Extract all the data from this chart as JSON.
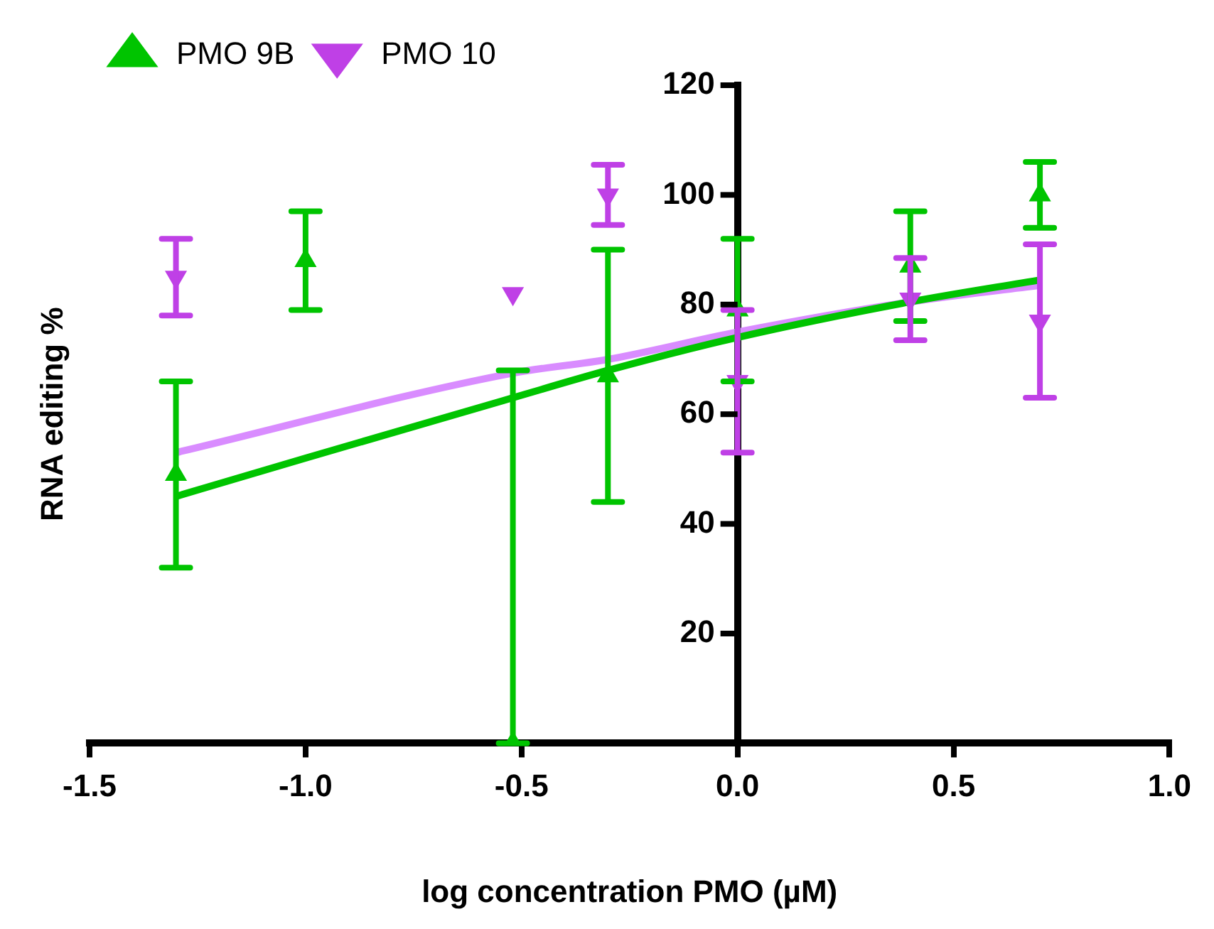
{
  "chart_data": {
    "type": "scatter",
    "xlabel": "log concentration PMO (µM)",
    "ylabel": "RNA editing %",
    "xlim": [
      -1.5,
      1.0
    ],
    "xticks": [
      -1.5,
      {
        "value": -1.0,
        "label": "-1.0"
      },
      -0.5,
      {
        "value": 0,
        "label": "0.0"
      },
      0.5,
      {
        "value": 1.0,
        "label": "1.0"
      }
    ],
    "ylim": [
      0,
      120
    ],
    "yticks": [
      {
        "value": 0,
        "label": null
      },
      20,
      40,
      60,
      80,
      100,
      120
    ],
    "grid": false,
    "legend": "top left",
    "series": [
      {
        "name": "PMO 9B",
        "type": "scatter",
        "marker": "triangle",
        "color": "#00c400",
        "x": [
          -1.3,
          -1.0,
          -0.52,
          -0.3,
          0,
          0.4,
          0.7
        ],
        "values": [
          49,
          88,
          0,
          67,
          79,
          87,
          100
        ],
        "errors": [
          17,
          9,
          [
            0,
            68
          ],
          23,
          13,
          10,
          6
        ]
      },
      {
        "name": "PMO 10",
        "type": "scatter",
        "marker": "triangle-down",
        "color": "#bf40e6",
        "x": [
          -1.3,
          -0.52,
          -0.3,
          0,
          0.4,
          0.7
        ],
        "values": [
          85,
          82,
          100,
          66,
          81,
          77
        ],
        "errors": [
          7,
          null,
          5.5,
          13,
          7.5,
          14
        ]
      },
      {
        "type": "line",
        "marker": "none",
        "color": "#00c400",
        "x": [
          -1.3,
          -1.0,
          -0.52,
          -0.3,
          0,
          0.4,
          0.7
        ],
        "values": [
          45,
          52,
          63,
          68,
          74,
          80.5,
          84.5
        ]
      },
      {
        "type": "line",
        "marker": "none",
        "color": "#d98cff",
        "x": [
          -1.3,
          -0.52,
          -0.3,
          0,
          0.4,
          0.7
        ],
        "values": [
          53,
          67.5,
          70,
          75,
          80.5,
          83.5
        ]
      }
    ]
  }
}
